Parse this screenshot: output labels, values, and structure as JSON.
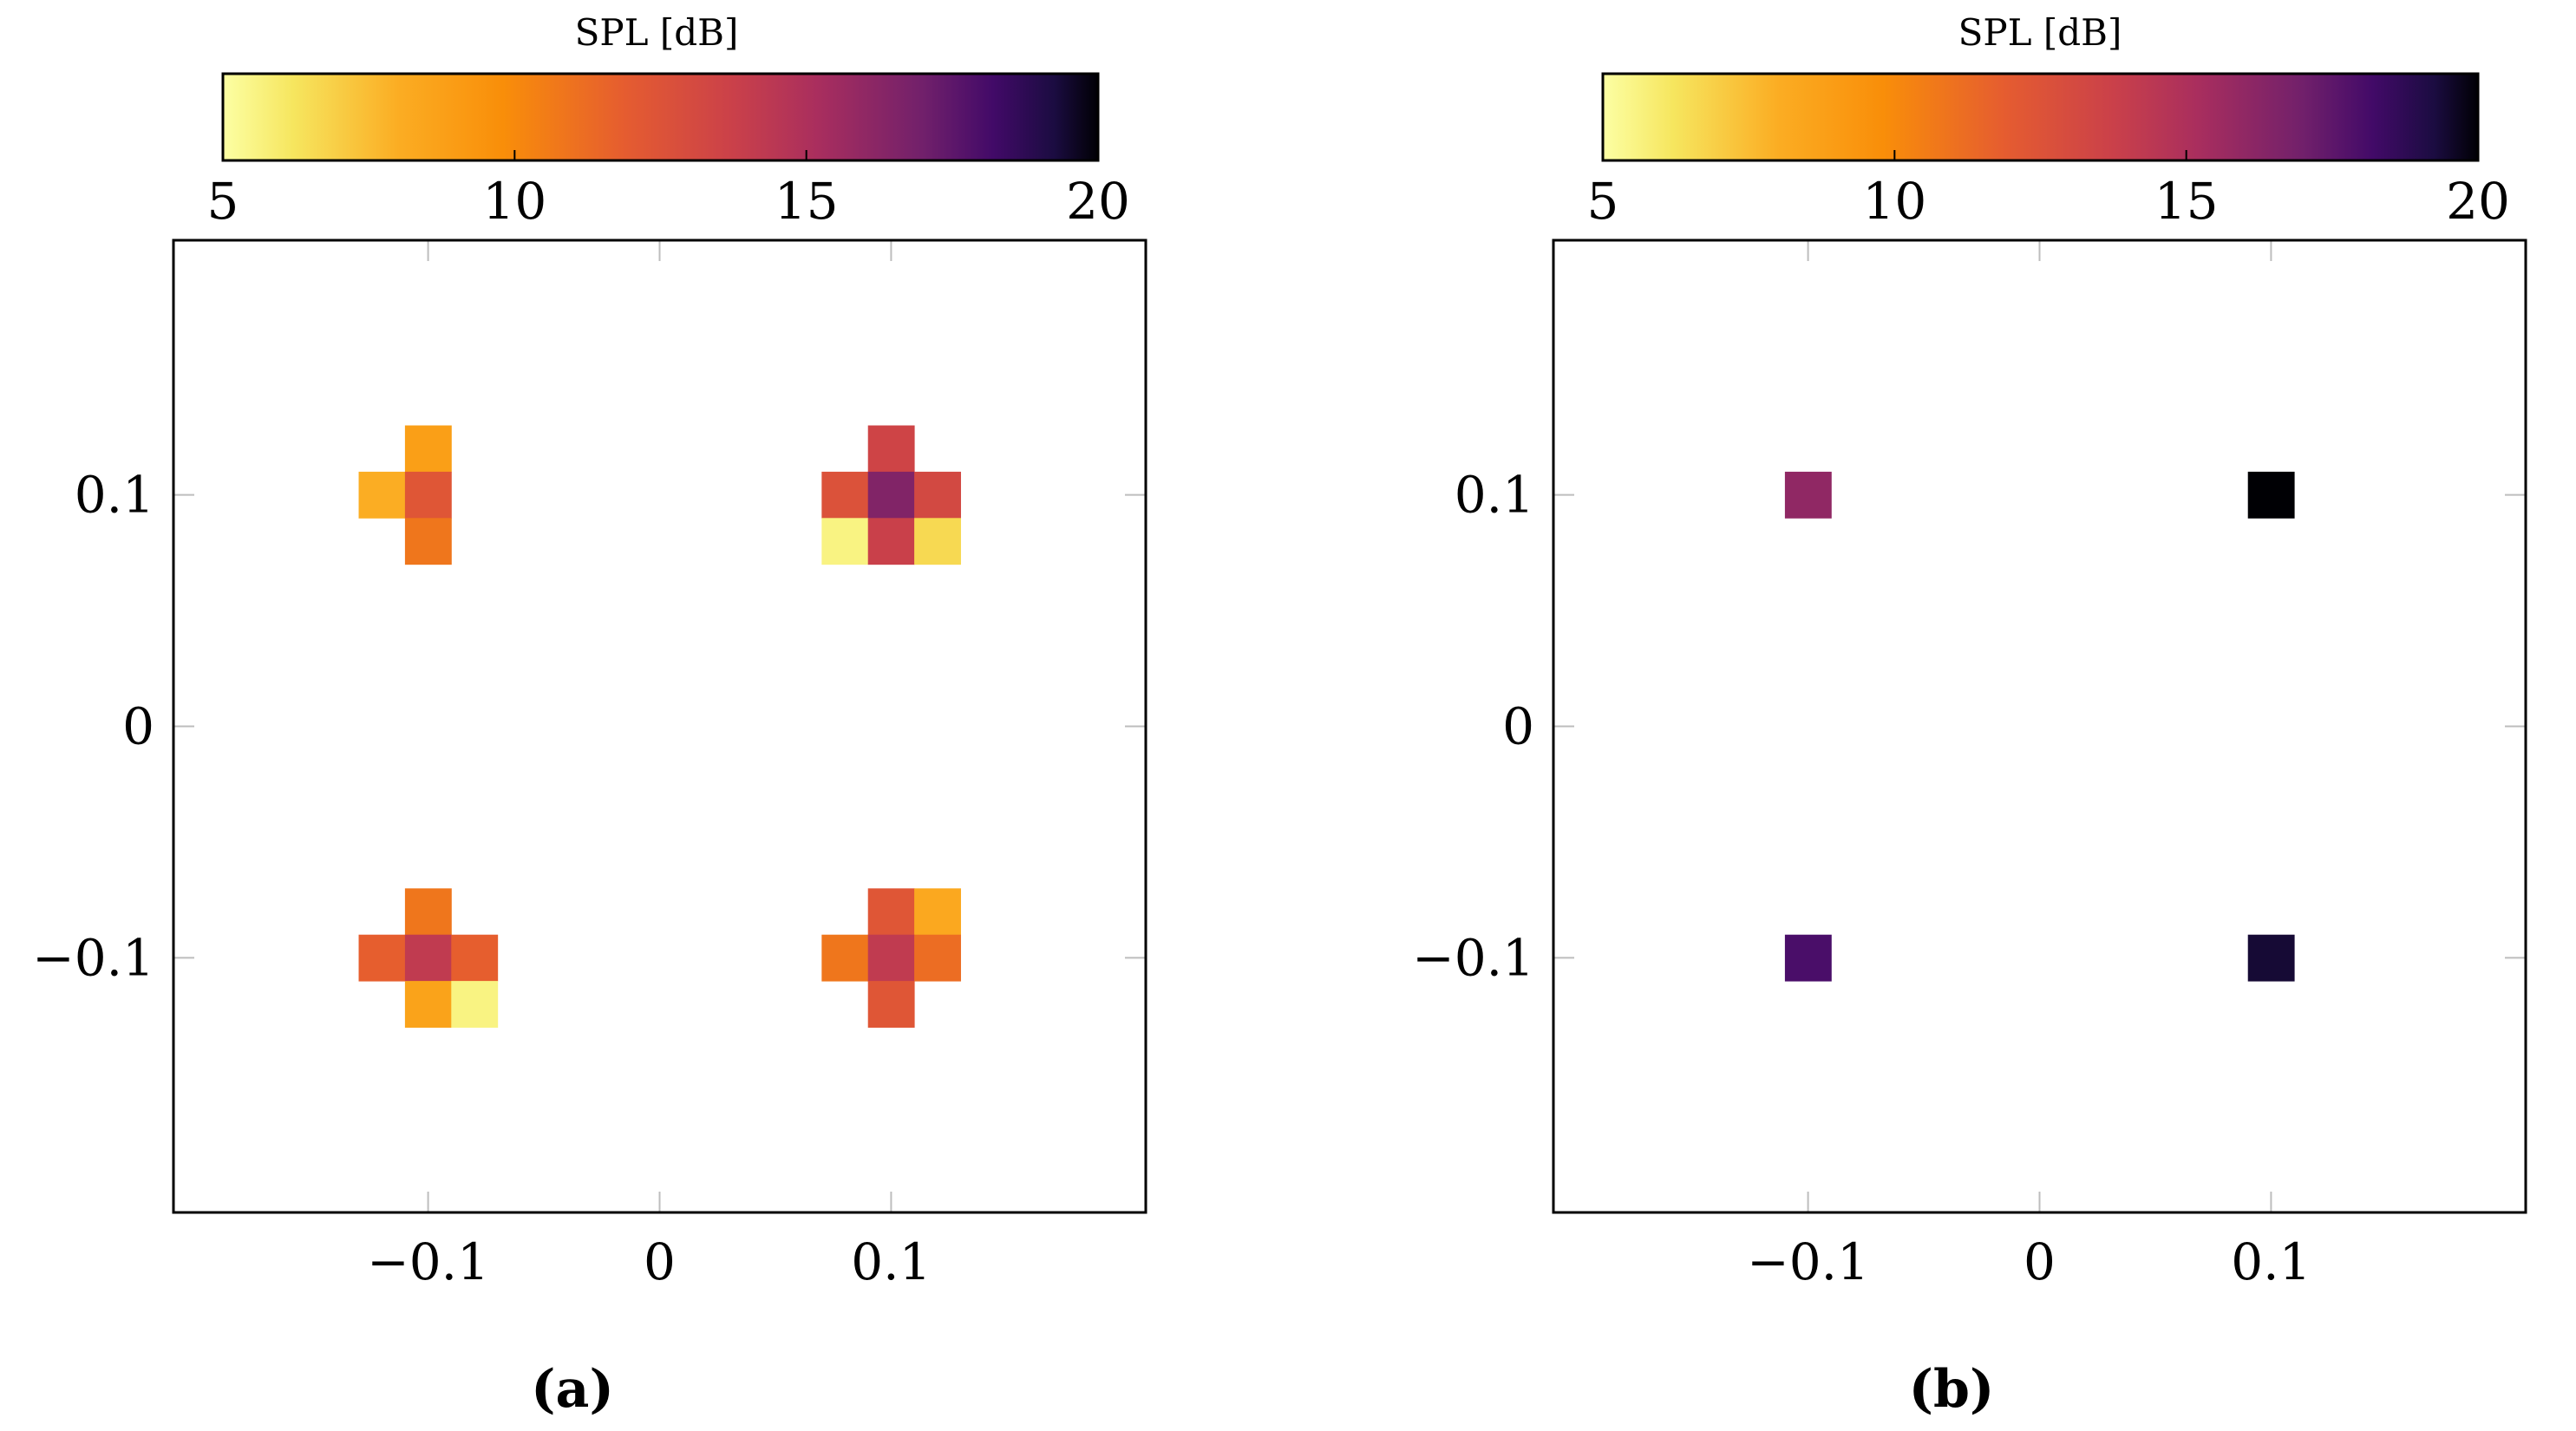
{
  "colormap": {
    "name": "inferno (reversed)",
    "stops": [
      [
        0.0,
        "#fcffa4"
      ],
      [
        0.08,
        "#f6e65f"
      ],
      [
        0.2,
        "#fbad23"
      ],
      [
        0.32,
        "#f98e09"
      ],
      [
        0.46,
        "#e55c30"
      ],
      [
        0.58,
        "#cb4149"
      ],
      [
        0.68,
        "#a92e5e"
      ],
      [
        0.8,
        "#71206b"
      ],
      [
        0.88,
        "#420a68"
      ],
      [
        0.95,
        "#1b0c41"
      ],
      [
        1.0,
        "#000004"
      ]
    ]
  },
  "chart_data": [
    {
      "panel": "a",
      "type": "heatmap",
      "caption": "(a)",
      "colorbar": {
        "label": "SPL [dB]",
        "range": [
          5,
          20
        ],
        "ticks": [
          "5",
          "10",
          "15",
          "20"
        ]
      },
      "xlim": [
        -0.21,
        0.21
      ],
      "ylim": [
        -0.21,
        0.21
      ],
      "xticks": [
        {
          "v": -0.1,
          "label": "−0.1"
        },
        {
          "v": 0,
          "label": "0"
        },
        {
          "v": 0.1,
          "label": "0.1"
        }
      ],
      "yticks": [
        {
          "v": 0.1,
          "label": "0.1"
        },
        {
          "v": 0,
          "label": "0"
        },
        {
          "v": -0.1,
          "label": "−0.1"
        }
      ],
      "cell_size": 0.02,
      "cells": [
        {
          "x": -0.1,
          "y": 0.12,
          "spl": 8.8
        },
        {
          "x": -0.12,
          "y": 0.1,
          "spl": 8.0
        },
        {
          "x": -0.1,
          "y": 0.1,
          "spl": 12.3
        },
        {
          "x": -0.1,
          "y": 0.08,
          "spl": 10.8
        },
        {
          "x": 0.1,
          "y": 0.12,
          "spl": 13.5
        },
        {
          "x": 0.08,
          "y": 0.1,
          "spl": 12.6
        },
        {
          "x": 0.1,
          "y": 0.1,
          "spl": 16.5
        },
        {
          "x": 0.12,
          "y": 0.1,
          "spl": 13.2
        },
        {
          "x": 0.08,
          "y": 0.08,
          "spl": 5.6
        },
        {
          "x": 0.1,
          "y": 0.08,
          "spl": 13.8
        },
        {
          "x": 0.12,
          "y": 0.08,
          "spl": 6.6
        },
        {
          "x": -0.1,
          "y": -0.08,
          "spl": 10.8
        },
        {
          "x": -0.12,
          "y": -0.1,
          "spl": 11.8
        },
        {
          "x": -0.1,
          "y": -0.1,
          "spl": 14.2
        },
        {
          "x": -0.08,
          "y": -0.1,
          "spl": 11.8
        },
        {
          "x": -0.1,
          "y": -0.12,
          "spl": 8.6
        },
        {
          "x": -0.08,
          "y": -0.12,
          "spl": 5.6
        },
        {
          "x": 0.1,
          "y": -0.08,
          "spl": 12.3
        },
        {
          "x": 0.12,
          "y": -0.08,
          "spl": 8.3
        },
        {
          "x": 0.08,
          "y": -0.1,
          "spl": 10.8
        },
        {
          "x": 0.1,
          "y": -0.1,
          "spl": 14.2
        },
        {
          "x": 0.12,
          "y": -0.1,
          "spl": 11.2
        },
        {
          "x": 0.1,
          "y": -0.12,
          "spl": 12.3
        }
      ]
    },
    {
      "panel": "b",
      "type": "heatmap",
      "caption": "(b)",
      "colorbar": {
        "label": "SPL [dB]",
        "range": [
          5,
          20
        ],
        "ticks": [
          "5",
          "10",
          "15",
          "20"
        ]
      },
      "xlim": [
        -0.21,
        0.21
      ],
      "ylim": [
        -0.21,
        0.21
      ],
      "xticks": [
        {
          "v": -0.1,
          "label": "−0.1"
        },
        {
          "v": 0,
          "label": "0"
        },
        {
          "v": 0.1,
          "label": "0.1"
        }
      ],
      "yticks": [
        {
          "v": 0.1,
          "label": "0.1"
        },
        {
          "v": 0,
          "label": "0"
        },
        {
          "v": -0.1,
          "label": "−0.1"
        }
      ],
      "cell_size": 0.02,
      "cells": [
        {
          "x": -0.1,
          "y": 0.1,
          "spl": 16.0
        },
        {
          "x": 0.1,
          "y": 0.1,
          "spl": 20.0
        },
        {
          "x": -0.1,
          "y": -0.1,
          "spl": 18.0
        },
        {
          "x": 0.1,
          "y": -0.1,
          "spl": 19.4
        }
      ]
    }
  ]
}
